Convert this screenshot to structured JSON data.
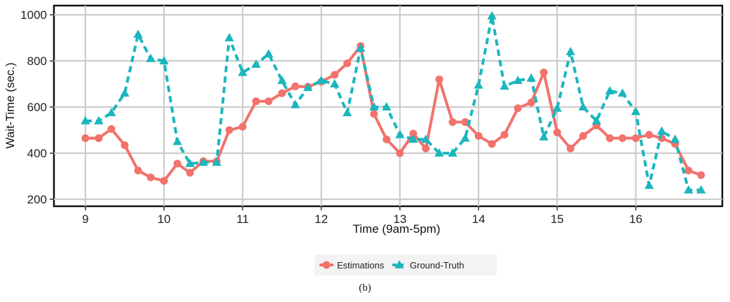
{
  "chart_data": {
    "type": "line",
    "xlabel": "Time (9am-5pm)",
    "ylabel": "Wait-Time (sec.)",
    "xlim": [
      8.6,
      17.1
    ],
    "ylim": [
      170,
      1040
    ],
    "xticks": [
      9,
      10,
      11,
      12,
      13,
      14,
      15,
      16
    ],
    "yticks": [
      200,
      400,
      600,
      800,
      1000
    ],
    "grid": true,
    "legend_position": "bottom",
    "caption": "(b)",
    "series": [
      {
        "name": "Estimations",
        "color": "#F2726C",
        "marker": "circle",
        "line_style": "solid",
        "x": [
          9.0,
          9.17,
          9.33,
          9.5,
          9.67,
          9.83,
          10.0,
          10.17,
          10.33,
          10.5,
          10.67,
          10.83,
          11.0,
          11.17,
          11.33,
          11.5,
          11.67,
          11.83,
          12.0,
          12.17,
          12.33,
          12.5,
          12.67,
          12.83,
          13.0,
          13.17,
          13.33,
          13.5,
          13.67,
          13.83,
          14.0,
          14.17,
          14.33,
          14.5,
          14.67,
          14.83,
          15.0,
          15.17,
          15.33,
          15.5,
          15.67,
          15.83,
          16.0,
          16.17,
          16.33,
          16.5,
          16.67,
          16.83
        ],
        "y": [
          465,
          465,
          505,
          435,
          325,
          295,
          280,
          355,
          315,
          365,
          365,
          500,
          515,
          625,
          625,
          660,
          690,
          688,
          710,
          740,
          790,
          865,
          570,
          460,
          400,
          485,
          420,
          720,
          535,
          535,
          475,
          440,
          480,
          595,
          620,
          750,
          490,
          420,
          475,
          520,
          465,
          465,
          465,
          480,
          465,
          440,
          325,
          305
        ]
      },
      {
        "name": "Ground-Truth",
        "color": "#1BB6BE",
        "marker": "triangle",
        "line_style": "dashed",
        "x": [
          9.0,
          9.17,
          9.33,
          9.5,
          9.67,
          9.83,
          10.0,
          10.17,
          10.33,
          10.5,
          10.67,
          10.83,
          11.0,
          11.17,
          11.33,
          11.5,
          11.67,
          11.83,
          12.0,
          12.17,
          12.33,
          12.5,
          12.67,
          12.83,
          13.0,
          13.17,
          13.33,
          13.5,
          13.67,
          13.83,
          14.0,
          14.17,
          14.33,
          14.5,
          14.67,
          14.83,
          15.0,
          15.17,
          15.33,
          15.5,
          15.67,
          15.83,
          16.0,
          16.17,
          16.33,
          16.5,
          16.67,
          16.83
        ],
        "y": [
          540,
          540,
          575,
          660,
          915,
          810,
          800,
          450,
          355,
          360,
          360,
          900,
          750,
          785,
          830,
          715,
          610,
          685,
          715,
          700,
          575,
          855,
          600,
          600,
          480,
          460,
          460,
          400,
          400,
          465,
          695,
          995,
          690,
          715,
          725,
          470,
          595,
          840,
          600,
          540,
          670,
          660,
          580,
          260,
          495,
          460,
          240,
          240
        ]
      }
    ]
  }
}
